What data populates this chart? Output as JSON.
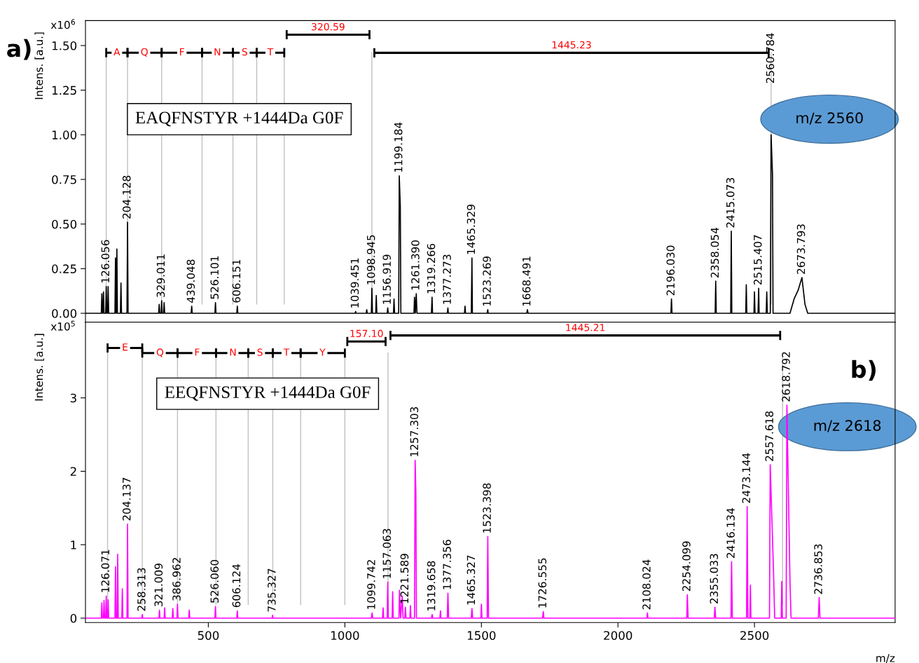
{
  "chart_data": [
    {
      "type": "line",
      "title": "a)",
      "subtitle": "EAQFNSTYR +1444Da G0F",
      "ylabel": "Intens. [a.u.]",
      "xlim": [
        50,
        3015
      ],
      "ylim": [
        -0.05,
        1.64
      ],
      "yticks": [
        {
          "value": 0,
          "label": "0.00"
        },
        {
          "value": 0.25,
          "label": "0.25"
        },
        {
          "value": 0.5,
          "label": "0.50"
        },
        {
          "value": 0.75,
          "label": "0.75"
        },
        {
          "value": 1,
          "label": "1.00"
        },
        {
          "value": 1.25,
          "label": "1.25"
        },
        {
          "value": 1.5,
          "label": "1.50"
        }
      ],
      "tick_labels": "y",
      "grid": false,
      "marker": "none",
      "line_style": "solid",
      "series": [
        {
          "color": "#000000",
          "x": [
            50,
            108,
            110,
            112,
            114,
            116,
            118,
            124,
            126.056,
            128,
            131,
            133,
            135,
            158,
            160,
            162,
            163,
            165,
            167,
            178,
            180,
            182,
            202,
            204.128,
            206,
            318,
            320,
            322,
            327,
            329.011,
            331,
            336,
            338,
            340,
            437,
            439.048,
            441,
            524,
            526.101,
            528,
            604,
            606.151,
            608,
            1037,
            1039.451,
            1041,
            1078,
            1080,
            1082,
            1097,
            1098.945,
            1101,
            1113,
            1115,
            1117,
            1155,
            1156.919,
            1159,
            1178,
            1180,
            1182,
            1197,
            1199.184,
            1203,
            1205,
            1253,
            1255,
            1258,
            1261.39,
            1264,
            1317,
            1319.266,
            1321,
            1375,
            1377.273,
            1379,
            1438,
            1440,
            1442,
            1463,
            1465.329,
            1467,
            1521,
            1523.269,
            1525,
            1666,
            1668.491,
            1671,
            2194,
            2196.03,
            2198,
            2356,
            2358.054,
            2360,
            2413,
            2415.073,
            2417,
            2468,
            2470,
            2472,
            2498,
            2500,
            2502,
            2513,
            2515.407,
            2517,
            2543,
            2545,
            2547,
            2558,
            2560.784,
            2566,
            2568,
            2630,
            2645,
            2660,
            2673.793,
            2685,
            2695,
            3015
          ],
          "values": [
            0,
            0,
            0.11,
            0,
            0,
            0.12,
            0,
            0,
            0.15,
            0,
            0,
            0.15,
            0,
            0,
            0.31,
            0,
            0,
            0.36,
            0,
            0,
            0.17,
            0,
            0,
            0.51,
            0,
            0,
            0.05,
            0,
            0,
            0.07,
            0,
            0,
            0.06,
            0,
            0,
            0.04,
            0,
            0,
            0.06,
            0,
            0,
            0.04,
            0,
            0,
            0.01,
            0,
            0,
            0.02,
            0,
            0,
            0.14,
            0,
            0,
            0.1,
            0,
            0,
            0.03,
            0,
            0,
            0.08,
            0,
            0,
            0.77,
            0.6,
            0,
            0,
            0.09,
            0,
            0.11,
            0,
            0,
            0.09,
            0,
            0,
            0.03,
            0,
            0,
            0.04,
            0,
            0,
            0.31,
            0,
            0,
            0.02,
            0,
            0,
            0.02,
            0,
            0,
            0.08,
            0,
            0,
            0.18,
            0,
            0,
            0.46,
            0,
            0,
            0.16,
            0,
            0,
            0.12,
            0,
            0,
            0.14,
            0,
            0,
            0.12,
            0,
            0,
            1.0,
            0.78,
            0,
            0,
            0.08,
            0.13,
            0.2,
            0.05,
            0,
            0
          ]
        }
      ],
      "ref_lines": [
        {
          "axis": "x",
          "value": 126,
          "color": "#c0c0c0"
        },
        {
          "axis": "x",
          "value": 204,
          "color": "#c0c0c0"
        },
        {
          "axis": "x",
          "value": 329,
          "color": "#c0c0c0"
        },
        {
          "axis": "x",
          "value": 477,
          "color": "#c0c0c0"
        },
        {
          "axis": "x",
          "value": 590,
          "color": "#c0c0c0"
        },
        {
          "axis": "x",
          "value": 677,
          "color": "#c0c0c0"
        },
        {
          "axis": "x",
          "value": 778,
          "color": "#c0c0c0"
        },
        {
          "axis": "x",
          "value": 1099,
          "color": "#c0c0c0"
        },
        {
          "axis": "x",
          "value": 2561,
          "color": "#c0c0c0"
        }
      ],
      "annotations": [
        "x10$^{6}$",
        "m/z 2560",
        {
          "text": "A",
          "x": 165,
          "y": 1.46
        },
        {
          "text": "Q",
          "x": 266,
          "y": 1.46
        },
        {
          "text": "F",
          "x": 403,
          "y": 1.46
        },
        {
          "text": "N",
          "x": 533,
          "y": 1.46
        },
        {
          "text": "S",
          "x": 633,
          "y": 1.46
        },
        {
          "text": "T",
          "x": 727,
          "y": 1.46
        },
        "320.59",
        "1445.23",
        {
          "text": "126.056",
          "x": 126.056,
          "y": 0.15
        },
        {
          "text": "204.128",
          "x": 204.128,
          "y": 0.51
        },
        {
          "text": "329.011",
          "x": 329.011,
          "y": 0.07
        },
        {
          "text": "439.048",
          "x": 439.048,
          "y": 0.04
        },
        {
          "text": "526.101",
          "x": 526.101,
          "y": 0.06
        },
        {
          "text": "606.151",
          "x": 606.151,
          "y": 0.04
        },
        {
          "text": "1039.451",
          "x": 1039.451,
          "y": 0.01
        },
        {
          "text": "1098.945",
          "x": 1098.945,
          "y": 0.14
        },
        {
          "text": "1156.919",
          "x": 1156.919,
          "y": 0.03
        },
        {
          "text": "1199.184",
          "x": 1199.184,
          "y": 0.77
        },
        {
          "text": "1261.390",
          "x": 1261.39,
          "y": 0.11
        },
        {
          "text": "1319.266",
          "x": 1319.266,
          "y": 0.09
        },
        {
          "text": "1377.273",
          "x": 1377.273,
          "y": 0.03
        },
        {
          "text": "1465.329",
          "x": 1465.329,
          "y": 0.31
        },
        {
          "text": "1523.269",
          "x": 1523.269,
          "y": 0.02
        },
        {
          "text": "1668.491",
          "x": 1668.491,
          "y": 0.02
        },
        {
          "text": "2196.030",
          "x": 2196.03,
          "y": 0.08
        },
        {
          "text": "2358.054",
          "x": 2358.054,
          "y": 0.18
        },
        {
          "text": "2415.073",
          "x": 2415.073,
          "y": 0.46
        },
        {
          "text": "2515.407",
          "x": 2515.407,
          "y": 0.14
        },
        {
          "text": "2560.784",
          "x": 2560.784,
          "y": 1.27
        },
        {
          "text": "2673.793",
          "x": 2673.793,
          "y": 0.2
        }
      ]
    },
    {
      "type": "line",
      "title": "b)",
      "subtitle": "EEQFNSTYR +1444Da G0F",
      "ylabel": "Intens. [a.u.]",
      "xlabel": "m/z",
      "xlim": [
        50,
        3015
      ],
      "ylim": [
        -0.06,
        4.03
      ],
      "xticks": [
        500,
        1000,
        1500,
        2000,
        2500
      ],
      "yticks": [
        0,
        1,
        2,
        3
      ],
      "grid": false,
      "marker": "none",
      "line_style": "solid",
      "series": [
        {
          "color": "#ff00ff",
          "x": [
            50,
            108,
            110,
            112,
            116,
            118,
            120,
            124,
            126.071,
            128,
            131,
            133,
            135,
            158,
            160,
            162,
            166,
            168,
            170,
            183,
            185,
            187,
            202,
            204.137,
            206,
            256,
            258.313,
            260,
            319,
            321.009,
            323,
            338,
            340,
            342,
            368,
            370,
            372,
            385,
            386.962,
            389,
            428,
            430,
            432,
            524,
            526.06,
            528,
            604,
            606.124,
            608,
            733,
            735.327,
            737,
            1097,
            1099.742,
            1102,
            1138,
            1140,
            1142,
            1155,
            1157.063,
            1159,
            1173,
            1175,
            1177,
            1198,
            1200,
            1204,
            1210,
            1213,
            1219,
            1221.589,
            1224,
            1238,
            1240,
            1242,
            1255,
            1257.303,
            1260,
            1262,
            1317,
            1319.658,
            1322,
            1348,
            1350,
            1352,
            1375,
            1377.356,
            1380,
            1463,
            1465.327,
            1468,
            1498,
            1500,
            1502,
            1521,
            1523.398,
            1526,
            1724,
            1726.555,
            1729,
            2106,
            2108.024,
            2110,
            2252,
            2254.099,
            2257,
            2353,
            2355.033,
            2358,
            2414,
            2416.134,
            2419,
            2471,
            2473.144,
            2476,
            2483,
            2485,
            2487,
            2555,
            2557.618,
            2570,
            2574,
            2598,
            2600,
            2602,
            2616,
            2618.792,
            2630,
            2634,
            2734,
            2736.853,
            2740,
            3015
          ],
          "values": [
            0,
            0,
            0.21,
            0,
            0,
            0.24,
            0,
            0,
            0.3,
            0,
            0,
            0.25,
            0,
            0,
            0.7,
            0,
            0,
            0.87,
            0,
            0,
            0.4,
            0,
            0,
            1.28,
            0,
            0,
            0.05,
            0,
            0,
            0.11,
            0,
            0,
            0.14,
            0,
            0,
            0.13,
            0,
            0,
            0.19,
            0,
            0,
            0.11,
            0,
            0,
            0.16,
            0,
            0,
            0.1,
            0,
            0,
            0.04,
            0,
            0,
            0.07,
            0,
            0,
            0.14,
            0,
            0,
            0.49,
            0,
            0,
            0.36,
            0,
            0,
            0.38,
            0,
            0.3,
            0,
            0,
            0.15,
            0,
            0,
            0.17,
            0,
            0,
            2.15,
            1.72,
            0,
            0,
            0.05,
            0,
            0,
            0.1,
            0,
            0,
            0.34,
            0,
            0,
            0.13,
            0,
            0,
            0.19,
            0,
            0,
            1.11,
            0,
            0,
            0.09,
            0,
            0,
            0.07,
            0,
            0,
            0.32,
            0,
            0,
            0.15,
            0,
            0,
            0.77,
            0,
            0,
            1.52,
            0,
            0,
            0.45,
            0,
            0,
            2.09,
            0.6,
            0,
            0,
            0.5,
            0,
            0,
            2.9,
            0.5,
            0,
            0,
            0.28,
            0,
            0
          ]
        }
      ],
      "ref_lines": [
        {
          "axis": "x",
          "value": 131,
          "color": "#c0c0c0"
        },
        {
          "axis": "x",
          "value": 258,
          "color": "#c0c0c0"
        },
        {
          "axis": "x",
          "value": 387,
          "color": "#c0c0c0"
        },
        {
          "axis": "x",
          "value": 528,
          "color": "#c0c0c0"
        },
        {
          "axis": "x",
          "value": 646,
          "color": "#c0c0c0"
        },
        {
          "axis": "x",
          "value": 736,
          "color": "#c0c0c0"
        },
        {
          "axis": "x",
          "value": 838,
          "color": "#c0c0c0"
        },
        {
          "axis": "x",
          "value": 1000,
          "color": "#c0c0c0"
        },
        {
          "axis": "x",
          "value": 1158,
          "color": "#c0c0c0"
        },
        {
          "axis": "x",
          "value": 2603,
          "color": "#c0c0c0"
        }
      ],
      "annotations": [
        "x10$^{5}$",
        "m/z 2618",
        {
          "text": "E",
          "x": 195,
          "y": 3.68
        },
        {
          "text": "Q",
          "x": 323,
          "y": 3.61
        },
        {
          "text": "F",
          "x": 459,
          "y": 3.61
        },
        {
          "text": "N",
          "x": 590,
          "y": 3.61
        },
        {
          "text": "S",
          "x": 689,
          "y": 3.61
        },
        {
          "text": "T",
          "x": 786,
          "y": 3.61
        },
        {
          "text": "Y",
          "x": 918,
          "y": 3.61
        },
        "157.10",
        "1445.21",
        {
          "text": "126.071",
          "x": 126.071,
          "y": 0.3
        },
        {
          "text": "204.137",
          "x": 204.137,
          "y": 1.28
        },
        {
          "text": "258.313",
          "x": 258.313,
          "y": 0.05
        },
        {
          "text": "321.009",
          "x": 321.009,
          "y": 0.11
        },
        {
          "text": "386.962",
          "x": 386.962,
          "y": 0.19
        },
        {
          "text": "526.060",
          "x": 526.06,
          "y": 0.16
        },
        {
          "text": "606.124",
          "x": 606.124,
          "y": 0.1
        },
        {
          "text": "735.327",
          "x": 735.327,
          "y": 0.04
        },
        {
          "text": "1099.742",
          "x": 1099.742,
          "y": 0.07
        },
        {
          "text": "1157.063",
          "x": 1157.063,
          "y": 0.49
        },
        {
          "text": "1221.589",
          "x": 1221.589,
          "y": 0.15
        },
        {
          "text": "1257.303",
          "x": 1257.303,
          "y": 2.15
        },
        {
          "text": "1319.658",
          "x": 1319.658,
          "y": 0.05
        },
        {
          "text": "1377.356",
          "x": 1377.356,
          "y": 0.34
        },
        {
          "text": "1465.327",
          "x": 1465.327,
          "y": 0.13
        },
        {
          "text": "1523.398",
          "x": 1523.398,
          "y": 1.11
        },
        {
          "text": "1726.555",
          "x": 1726.555,
          "y": 0.09
        },
        {
          "text": "2108.024",
          "x": 2108.024,
          "y": 0.07
        },
        {
          "text": "2254.099",
          "x": 2254.099,
          "y": 0.32
        },
        {
          "text": "2355.033",
          "x": 2355.033,
          "y": 0.15
        },
        {
          "text": "2416.134",
          "x": 2416.134,
          "y": 0.77
        },
        {
          "text": "2473.144",
          "x": 2473.144,
          "y": 1.52
        },
        {
          "text": "2557.618",
          "x": 2557.618,
          "y": 2.09
        },
        {
          "text": "2618.792",
          "x": 2618.792,
          "y": 2.9
        },
        {
          "text": "2736.853",
          "x": 2736.853,
          "y": 0.28
        }
      ]
    }
  ]
}
